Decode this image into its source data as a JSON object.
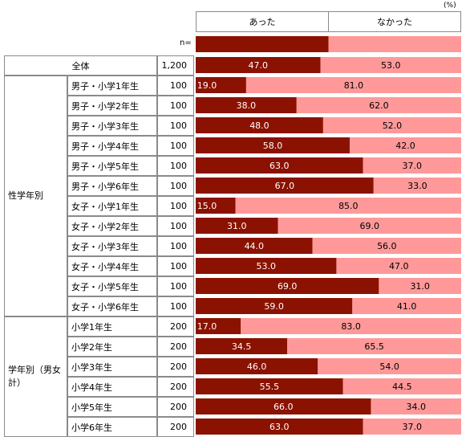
{
  "chart_data": {
    "type": "bar",
    "orientation": "horizontal",
    "stacked": true,
    "percent": true,
    "unit_label": "(%)",
    "n_label": "n=",
    "xlim": [
      0,
      100
    ],
    "series": [
      {
        "name": "あった",
        "color": "#8b1200"
      },
      {
        "name": "なかった",
        "color": "#ff9999"
      }
    ],
    "groups": [
      {
        "label": "",
        "rows": [
          {
            "label": "全体",
            "n": "1,200",
            "values": [
              47.0,
              53.0
            ],
            "value_labels": [
              "47.0",
              "53.0"
            ]
          }
        ]
      },
      {
        "label": "性学年別",
        "rows": [
          {
            "label": "男子・小学1年生",
            "n": "100",
            "values": [
              19.0,
              81.0
            ],
            "value_labels": [
              "19.0",
              "81.0"
            ]
          },
          {
            "label": "男子・小学2年生",
            "n": "100",
            "values": [
              38.0,
              62.0
            ],
            "value_labels": [
              "38.0",
              "62.0"
            ]
          },
          {
            "label": "男子・小学3年生",
            "n": "100",
            "values": [
              48.0,
              52.0
            ],
            "value_labels": [
              "48.0",
              "52.0"
            ]
          },
          {
            "label": "男子・小学4年生",
            "n": "100",
            "values": [
              58.0,
              42.0
            ],
            "value_labels": [
              "58.0",
              "42.0"
            ]
          },
          {
            "label": "男子・小学5年生",
            "n": "100",
            "values": [
              63.0,
              37.0
            ],
            "value_labels": [
              "63.0",
              "37.0"
            ]
          },
          {
            "label": "男子・小学6年生",
            "n": "100",
            "values": [
              67.0,
              33.0
            ],
            "value_labels": [
              "67.0",
              "33.0"
            ]
          },
          {
            "label": "女子・小学1年生",
            "n": "100",
            "values": [
              15.0,
              85.0
            ],
            "value_labels": [
              "15.0",
              "85.0"
            ]
          },
          {
            "label": "女子・小学2年生",
            "n": "100",
            "values": [
              31.0,
              69.0
            ],
            "value_labels": [
              "31.0",
              "69.0"
            ]
          },
          {
            "label": "女子・小学3年生",
            "n": "100",
            "values": [
              44.0,
              56.0
            ],
            "value_labels": [
              "44.0",
              "56.0"
            ]
          },
          {
            "label": "女子・小学4年生",
            "n": "100",
            "values": [
              53.0,
              47.0
            ],
            "value_labels": [
              "53.0",
              "47.0"
            ]
          },
          {
            "label": "女子・小学5年生",
            "n": "100",
            "values": [
              69.0,
              31.0
            ],
            "value_labels": [
              "69.0",
              "31.0"
            ]
          },
          {
            "label": "女子・小学6年生",
            "n": "100",
            "values": [
              59.0,
              41.0
            ],
            "value_labels": [
              "59.0",
              "41.0"
            ]
          }
        ]
      },
      {
        "label": "学年別（男女計）",
        "rows": [
          {
            "label": "小学1年生",
            "n": "200",
            "values": [
              17.0,
              83.0
            ],
            "value_labels": [
              "17.0",
              "83.0"
            ]
          },
          {
            "label": "小学2年生",
            "n": "200",
            "values": [
              34.5,
              65.5
            ],
            "value_labels": [
              "34.5",
              "65.5"
            ]
          },
          {
            "label": "小学3年生",
            "n": "200",
            "values": [
              46.0,
              54.0
            ],
            "value_labels": [
              "46.0",
              "54.0"
            ]
          },
          {
            "label": "小学4年生",
            "n": "200",
            "values": [
              55.5,
              44.5
            ],
            "value_labels": [
              "55.5",
              "44.5"
            ]
          },
          {
            "label": "小学5年生",
            "n": "200",
            "values": [
              66.0,
              34.0
            ],
            "value_labels": [
              "66.0",
              "34.0"
            ]
          },
          {
            "label": "小学6年生",
            "n": "200",
            "values": [
              63.0,
              37.0
            ],
            "value_labels": [
              "63.0",
              "37.0"
            ]
          }
        ]
      }
    ]
  }
}
